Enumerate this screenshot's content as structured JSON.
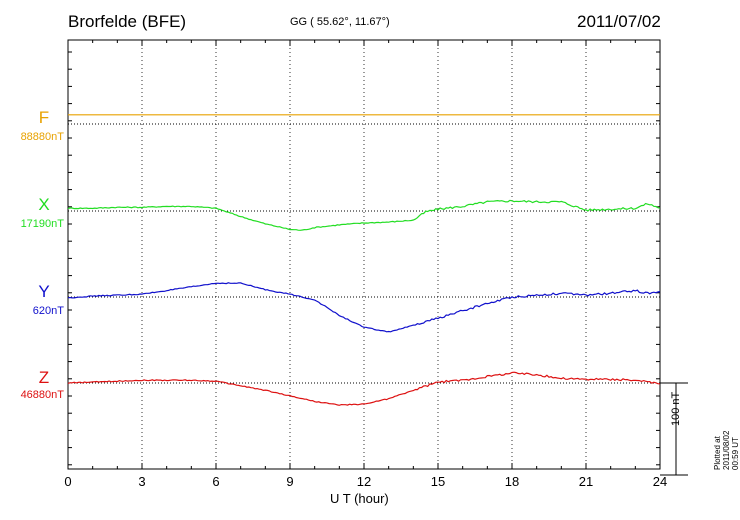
{
  "header": {
    "station": "Brorfelde (BFE)",
    "coords": "GG ( 55.62°,  11.67°)",
    "date": "2011/07/02"
  },
  "plotted_note": "Plotted at 2011/08/02 00:59 UT",
  "scale_bar_label": "100 nT",
  "colors": {
    "F": "#e8a200",
    "X": "#22dd22",
    "Y": "#1111cc",
    "Z": "#dd1111"
  },
  "chart_data": {
    "type": "line",
    "title": "Brorfelde (BFE)",
    "xlabel": "U T (hour)",
    "xlim": [
      0,
      24
    ],
    "x_ticks": [
      "0",
      "3",
      "6",
      "9",
      "12",
      "15",
      "18",
      "21",
      "24"
    ],
    "grid": true,
    "scale_bar_nT": 100,
    "channels": [
      {
        "name": "F",
        "baseline_label": "88880nT",
        "baseline": 88880,
        "x": [
          0,
          24
        ],
        "values": [
          88890,
          88890
        ]
      },
      {
        "name": "X",
        "baseline_label": "17190nT",
        "baseline": 17190,
        "x": [
          0,
          1,
          2,
          3,
          4,
          5,
          6,
          7,
          8,
          9,
          9.5,
          10,
          11,
          12,
          13,
          14,
          14.5,
          15,
          16,
          17,
          18,
          19,
          20,
          21,
          22,
          23,
          23.5,
          24
        ],
        "values": [
          17193,
          17193,
          17194,
          17194,
          17195,
          17195,
          17193,
          17184,
          17176,
          17170,
          17169,
          17172,
          17175,
          17177,
          17178,
          17180,
          17189,
          17192,
          17195,
          17200,
          17201,
          17200,
          17200,
          17191,
          17192,
          17193,
          17198,
          17193
        ]
      },
      {
        "name": "Y",
        "baseline_label": "620nT",
        "baseline": 620,
        "x": [
          0,
          1,
          2,
          3,
          4,
          5,
          6,
          7,
          8,
          9,
          10,
          11,
          12,
          13,
          14,
          15,
          16,
          17,
          18,
          19,
          20,
          21,
          22,
          23,
          23.5,
          24
        ],
        "values": [
          619,
          621,
          622,
          623,
          627,
          631,
          635,
          635,
          628,
          623,
          617,
          600,
          587,
          582,
          589,
          597,
          605,
          613,
          620,
          622,
          624,
          622,
          624,
          627,
          624,
          626
        ]
      },
      {
        "name": "Z",
        "baseline_label": "46880nT",
        "baseline": 46880,
        "x": [
          0,
          1,
          2,
          3,
          4,
          5,
          6,
          7,
          8,
          9,
          10,
          11,
          12,
          13,
          14,
          15,
          16,
          17,
          18,
          19,
          20,
          21,
          22,
          23,
          24
        ],
        "values": [
          46880,
          46881,
          46882,
          46883,
          46883,
          46883,
          46882,
          46877,
          46872,
          46866,
          46860,
          46856,
          46857,
          46863,
          46872,
          46881,
          46883,
          46887,
          46891,
          46889,
          46885,
          46884,
          46884,
          46883,
          46879
        ]
      }
    ]
  }
}
